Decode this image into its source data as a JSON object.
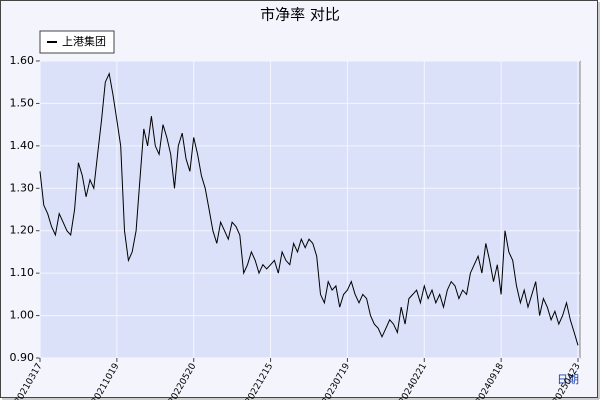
{
  "chart_data": {
    "type": "line",
    "title": "市净率  对比",
    "xlabel": "日期",
    "categories": [
      "20210317",
      null,
      null,
      null,
      null,
      null,
      null,
      null,
      null,
      null,
      null,
      null,
      null,
      null,
      null,
      null,
      null,
      null,
      null,
      null,
      "20211019",
      null,
      null,
      null,
      null,
      null,
      null,
      null,
      null,
      null,
      null,
      null,
      null,
      null,
      null,
      null,
      null,
      null,
      null,
      null,
      "20220520",
      null,
      null,
      null,
      null,
      null,
      null,
      null,
      null,
      null,
      null,
      null,
      null,
      null,
      null,
      null,
      null,
      null,
      null,
      null,
      "20221215",
      null,
      null,
      null,
      null,
      null,
      null,
      null,
      null,
      null,
      null,
      null,
      null,
      null,
      null,
      null,
      null,
      null,
      null,
      null,
      "20230719",
      null,
      null,
      null,
      null,
      null,
      null,
      null,
      null,
      null,
      null,
      null,
      null,
      null,
      null,
      null,
      null,
      null,
      null,
      null,
      "20240221",
      null,
      null,
      null,
      null,
      null,
      null,
      null,
      null,
      null,
      null,
      null,
      null,
      null,
      null,
      null,
      null,
      null,
      null,
      null,
      "20240918",
      null,
      null,
      null,
      null,
      null,
      null,
      null,
      null,
      null,
      null,
      null,
      null,
      null,
      null,
      null,
      null,
      null,
      null,
      null,
      "20250423"
    ],
    "series": [
      {
        "name": "上港集团",
        "color": "#000000",
        "values": [
          1.34,
          1.26,
          1.24,
          1.21,
          1.19,
          1.24,
          1.22,
          1.2,
          1.19,
          1.25,
          1.36,
          1.33,
          1.28,
          1.32,
          1.3,
          1.38,
          1.46,
          1.55,
          1.57,
          1.52,
          1.46,
          1.4,
          1.2,
          1.13,
          1.15,
          1.2,
          1.32,
          1.44,
          1.4,
          1.47,
          1.4,
          1.38,
          1.45,
          1.42,
          1.38,
          1.3,
          1.4,
          1.43,
          1.37,
          1.34,
          1.42,
          1.38,
          1.33,
          1.3,
          1.25,
          1.2,
          1.17,
          1.22,
          1.2,
          1.18,
          1.22,
          1.21,
          1.19,
          1.1,
          1.12,
          1.15,
          1.13,
          1.1,
          1.12,
          1.11,
          1.12,
          1.13,
          1.1,
          1.15,
          1.13,
          1.12,
          1.17,
          1.15,
          1.18,
          1.16,
          1.18,
          1.17,
          1.14,
          1.05,
          1.03,
          1.08,
          1.06,
          1.07,
          1.02,
          1.05,
          1.06,
          1.08,
          1.05,
          1.03,
          1.05,
          1.04,
          1.0,
          0.98,
          0.97,
          0.95,
          0.97,
          0.99,
          0.98,
          0.96,
          1.02,
          0.98,
          1.04,
          1.05,
          1.06,
          1.03,
          1.07,
          1.04,
          1.06,
          1.03,
          1.05,
          1.02,
          1.06,
          1.08,
          1.07,
          1.04,
          1.06,
          1.05,
          1.1,
          1.12,
          1.14,
          1.1,
          1.17,
          1.13,
          1.08,
          1.12,
          1.05,
          1.2,
          1.15,
          1.13,
          1.07,
          1.03,
          1.06,
          1.02,
          1.05,
          1.08,
          1.0,
          1.04,
          1.02,
          0.99,
          1.01,
          0.98,
          1.0,
          1.03,
          0.99,
          0.96,
          0.93
        ]
      }
    ],
    "ylim": [
      0.9,
      1.6
    ],
    "yticks": [
      {
        "value": 0.9,
        "label": "0.90"
      },
      {
        "value": 1.0,
        "label": "1.00"
      },
      {
        "value": 1.1,
        "label": "1.10"
      },
      {
        "value": 1.2,
        "label": "1.20"
      },
      {
        "value": 1.3,
        "label": "1.30"
      },
      {
        "value": 1.4,
        "label": "1.40"
      },
      {
        "value": 1.5,
        "label": "1.50"
      },
      {
        "value": 1.6,
        "label": "1.60"
      }
    ],
    "grid": true,
    "legend": "upper left"
  }
}
